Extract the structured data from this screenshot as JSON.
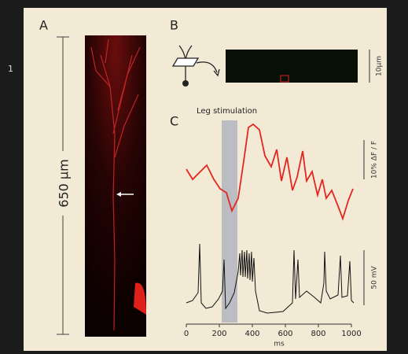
{
  "side_label": "1",
  "panels": [
    {
      "label": "A",
      "scale": "650 µm"
    },
    {
      "label": "B",
      "scale": "10µm"
    },
    {
      "label": "C",
      "annotation": "Leg stimulation",
      "scale_top": "10% ΔF / F",
      "scale_bottom": "50 mV"
    }
  ],
  "x_axis": {
    "ticks": [
      0,
      200,
      400,
      600,
      800,
      1000
    ],
    "label": "ms",
    "range": [
      0,
      1000
    ]
  }
}
